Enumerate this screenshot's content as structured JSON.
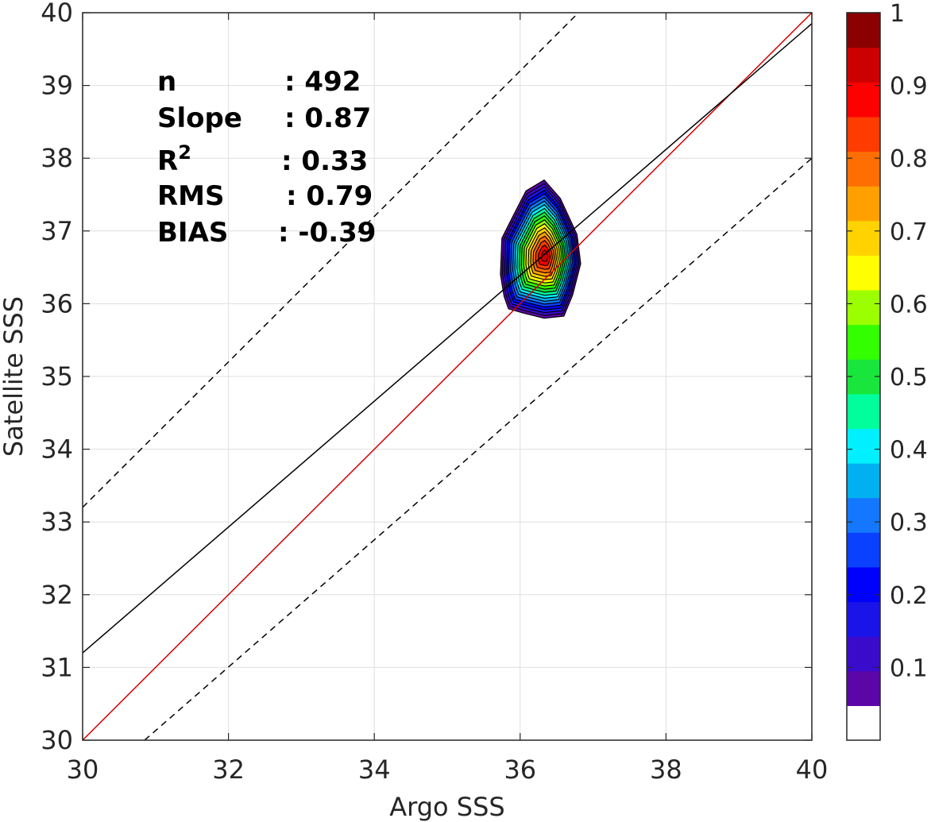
{
  "chart_data": {
    "type": "scatter-density-contour",
    "xlabel": "Argo SSS",
    "ylabel": "Satellite SSS",
    "xlim": [
      30,
      40
    ],
    "ylim": [
      30,
      40
    ],
    "x_ticks": [
      30,
      32,
      34,
      36,
      38,
      40
    ],
    "y_ticks": [
      30,
      31,
      32,
      33,
      34,
      35,
      36,
      37,
      38,
      39,
      40
    ],
    "grid": true,
    "stats": [
      {
        "label": "n",
        "value": ": 492"
      },
      {
        "label": "Slope",
        "value": ": 0.87"
      },
      {
        "label": "R",
        "sup": "2",
        "value": ": 0.33"
      },
      {
        "label": "RMS",
        "value": ": 0.79"
      },
      {
        "label": "BIAS",
        "value": ": -0.39"
      }
    ],
    "lines": [
      {
        "kind": "one-to-one",
        "color": "#d40000",
        "style": "solid",
        "points": [
          [
            30,
            30
          ],
          [
            40,
            40
          ]
        ]
      },
      {
        "kind": "regression",
        "color": "#000000",
        "style": "solid",
        "points": [
          [
            30,
            31.2
          ],
          [
            40,
            39.85
          ]
        ]
      },
      {
        "kind": "upper-bound",
        "color": "#000000",
        "style": "dashed",
        "points": [
          [
            30,
            33.2
          ],
          [
            36.8,
            40
          ]
        ]
      },
      {
        "kind": "lower-bound",
        "color": "#000000",
        "style": "dashed",
        "points": [
          [
            30.85,
            30
          ],
          [
            40,
            38
          ]
        ]
      }
    ],
    "density": {
      "center": [
        36.33,
        36.68
      ],
      "levels": [
        0.05,
        0.1,
        0.15,
        0.2,
        0.25,
        0.3,
        0.35,
        0.4,
        0.45,
        0.5,
        0.55,
        0.6,
        0.65,
        0.7,
        0.75,
        0.8,
        0.85,
        0.9,
        0.95
      ],
      "outer_contour": [
        [
          35.84,
          35.93
        ],
        [
          36.05,
          35.87
        ],
        [
          36.33,
          35.8
        ],
        [
          36.6,
          35.83
        ],
        [
          36.72,
          36.12
        ],
        [
          36.83,
          36.55
        ],
        [
          36.78,
          36.95
        ],
        [
          36.55,
          37.45
        ],
        [
          36.33,
          37.7
        ],
        [
          36.08,
          37.55
        ],
        [
          35.9,
          37.2
        ],
        [
          35.75,
          36.9
        ],
        [
          35.73,
          36.4
        ],
        [
          35.78,
          36.1
        ]
      ],
      "peak": [
        36.34,
        36.65
      ]
    },
    "colorbar": {
      "range": [
        0,
        1
      ],
      "tick_labels": [
        "0.1",
        "0.2",
        "0.3",
        "0.4",
        "0.5",
        "0.6",
        "0.7",
        "0.8",
        "0.9",
        "1"
      ],
      "tick_values": [
        0.1,
        0.2,
        0.3,
        0.4,
        0.5,
        0.6,
        0.7,
        0.8,
        0.9,
        1.0
      ],
      "colors": [
        "#ffffff",
        "#5d06a8",
        "#3b0bcc",
        "#1a14e8",
        "#0000ff",
        "#0a40ff",
        "#1477ff",
        "#00b0f0",
        "#00f0ff",
        "#00ff9c",
        "#18e63c",
        "#33ff00",
        "#9cff00",
        "#ffff00",
        "#ffd200",
        "#ffa000",
        "#ff6e00",
        "#ff3c00",
        "#ff0000",
        "#cc0000",
        "#8b0000"
      ]
    }
  }
}
